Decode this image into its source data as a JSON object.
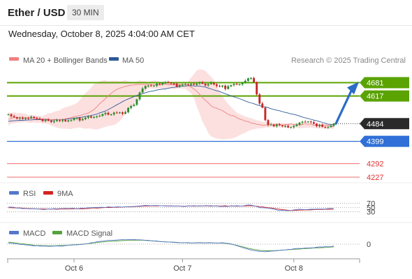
{
  "header": {
    "symbol": "Ether / USD",
    "timeframe": "30 MIN"
  },
  "datetime": "Wednesday, October 8, 2025 4:04:00 AM CET",
  "legend": {
    "ma20": "MA 20 + Bollinger Bands",
    "ma50": "MA 50",
    "copyright": "Research © 2025 Trading Central"
  },
  "colors": {
    "ma20": "#f08080",
    "ma50": "#2c5a9a",
    "bollinger_fill": "#fbd6d6",
    "candle_up": "#2e8b2e",
    "candle_down": "#c62828",
    "resistance": "#5aa300",
    "support": "#2f6fd6",
    "pivot_low": "#f26b6b",
    "arrow": "#2a6cc6",
    "rsi": "#5577cc",
    "rsi_ma": "#d42222",
    "macd": "#5577cc",
    "macd_signal": "#55a33a"
  },
  "chart_data": [
    {
      "type": "candlestick",
      "title": "Ether / USD",
      "ylim": [
        4200,
        4760
      ],
      "x_ticks": [
        "Oct 6",
        "Oct 7",
        "Oct 8"
      ],
      "series": [
        {
          "name": "MA 20 + Bollinger Bands"
        },
        {
          "name": "MA 50"
        }
      ],
      "levels": [
        {
          "value": 4681,
          "label": "4681",
          "kind": "resistance",
          "tag": true
        },
        {
          "value": 4617,
          "label": "4617",
          "kind": "resistance",
          "tag": true
        },
        {
          "value": 4484,
          "label": "4484",
          "kind": "last",
          "tag": true
        },
        {
          "value": 4399,
          "label": "4399",
          "kind": "support",
          "tag": true
        },
        {
          "value": 4292,
          "label": "4292",
          "kind": "support",
          "tag": false
        },
        {
          "value": 4227,
          "label": "4227",
          "kind": "support",
          "tag": false
        }
      ],
      "forecast_arrow": {
        "from": 4484,
        "to": 4665
      },
      "closes": [
        4529,
        4520,
        4515,
        4509,
        4512,
        4507,
        4512,
        4510,
        4517,
        4512,
        4508,
        4505,
        4497,
        4503,
        4498,
        4492,
        4496,
        4501,
        4497,
        4501,
        4495,
        4500,
        4501,
        4508,
        4512,
        4500,
        4506,
        4513,
        4519,
        4513,
        4517,
        4519,
        4522,
        4530,
        4536,
        4527,
        4529,
        4537,
        4536,
        4538,
        4532,
        4539,
        4560,
        4569,
        4575,
        4601,
        4634,
        4653,
        4665,
        4667,
        4666,
        4667,
        4676,
        4673,
        4681,
        4683,
        4681,
        4677,
        4676,
        4662,
        4669,
        4671,
        4673,
        4670,
        4675,
        4671,
        4677,
        4682,
        4676,
        4668,
        4674,
        4681,
        4673,
        4665,
        4662,
        4667,
        4651,
        4664,
        4669,
        4674,
        4672,
        4673,
        4680,
        4690,
        4702,
        4703,
        4684,
        4625,
        4581,
        4561,
        4501,
        4478,
        4480,
        4472,
        4480,
        4476,
        4472,
        4473,
        4466,
        4467,
        4473,
        4479,
        4489,
        4493,
        4492,
        4494,
        4491,
        4484,
        4472,
        4478,
        4469,
        4466,
        4468,
        4474,
        4484
      ],
      "ma20": [
        4505,
        4509,
        4513,
        4514,
        4514,
        4515,
        4512,
        4512,
        4511,
        4509,
        4507,
        4506,
        4507,
        4506,
        4505,
        4503,
        4504,
        4504,
        4503,
        4505,
        4507,
        4510,
        4513,
        4518,
        4521,
        4523,
        4527,
        4532,
        4535,
        4543,
        4552,
        4565,
        4580,
        4592,
        4604,
        4618,
        4630,
        4640,
        4649,
        4655,
        4658,
        4664,
        4666,
        4669,
        4670,
        4672,
        4672,
        4672,
        4673,
        4672,
        4672,
        4670,
        4672,
        4669,
        4673,
        4674,
        4671,
        4671,
        4671,
        4670,
        4671,
        4672,
        4672,
        4666,
        4660,
        4651,
        4640,
        4625,
        4609,
        4596,
        4585,
        4570,
        4562,
        4558,
        4552,
        4547,
        4538,
        4529,
        4523,
        4522,
        4513,
        4506,
        4502,
        4496,
        4494,
        4487,
        4485,
        4481,
        4479,
        4477,
        4477,
        4480,
        4478,
        4479,
        4480,
        4482,
        4477,
        4480,
        4481,
        4483,
        4480,
        4482,
        4478,
        4480,
        4485,
        4481,
        4483,
        4476,
        4481,
        4475,
        4478,
        4476,
        4476,
        4471,
        4470
      ],
      "bb_upper": [
        4540,
        4533,
        4540,
        4533,
        4536,
        4533,
        4533,
        4524,
        4524,
        4525,
        4522,
        4522,
        4519,
        4527,
        4534,
        4535,
        4542,
        4544,
        4548,
        4558,
        4563,
        4567,
        4572,
        4577,
        4583,
        4597,
        4616,
        4632,
        4644,
        4657,
        4674,
        4680,
        4689,
        4692,
        4694,
        4688,
        4690,
        4691,
        4690,
        4688,
        4691,
        4694,
        4688,
        4686,
        4684,
        4688,
        4692,
        4689,
        4689,
        4685,
        4689,
        4692,
        4690,
        4686,
        4685,
        4686,
        4681,
        4680,
        4679,
        4677,
        4681,
        4681,
        4679,
        4688,
        4706,
        4722,
        4740,
        4745,
        4744,
        4738,
        4724,
        4710,
        4693,
        4665,
        4640,
        4616,
        4596,
        4580,
        4565,
        4551,
        4538,
        4530,
        4525,
        4519,
        4514,
        4512,
        4505,
        4501,
        4498,
        4494,
        4492,
        4490,
        4490,
        4487,
        4487,
        4486,
        4487,
        4485,
        4486,
        4484,
        4484,
        4483,
        4482,
        4485,
        4484,
        4484,
        4484,
        4486,
        4484,
        4485,
        4484,
        4483,
        4483,
        4484,
        4483
      ],
      "bb_lower": [
        4475,
        4484,
        4486,
        4489,
        4488,
        4491,
        4492,
        4490,
        4487,
        4490,
        4487,
        4489,
        4484,
        4486,
        4483,
        4475,
        4470,
        4465,
        4463,
        4459,
        4460,
        4459,
        4458,
        4463,
        4463,
        4466,
        4462,
        4459,
        4462,
        4460,
        4457,
        4456,
        4460,
        4464,
        4469,
        4473,
        4475,
        4477,
        4485,
        4496,
        4512,
        4530,
        4546,
        4563,
        4583,
        4600,
        4617,
        4630,
        4640,
        4654,
        4654,
        4652,
        4654,
        4653,
        4651,
        4654,
        4655,
        4651,
        4650,
        4652,
        4654,
        4651,
        4652,
        4641,
        4630,
        4608,
        4566,
        4532,
        4493,
        4469,
        4440,
        4423,
        4417,
        4412,
        4411,
        4408,
        4410,
        4410,
        4412,
        4415,
        4421,
        4429,
        4435,
        4441,
        4449,
        4454,
        4457,
        4460,
        4462,
        4462,
        4466,
        4466,
        4467,
        4468,
        4466,
        4466,
        4465,
        4466,
        4463,
        4465,
        4467,
        4464,
        4462,
        4463,
        4464,
        4465,
        4466,
        4464,
        4461,
        4461,
        4460,
        4459,
        4460,
        4460,
        4459
      ],
      "ma50": [
        4495,
        4497,
        4498,
        4499,
        4500,
        4500,
        4501,
        4502,
        4502,
        4503,
        4503,
        4503,
        4502,
        4502,
        4503,
        4501,
        4502,
        4503,
        4504,
        4503,
        4505,
        4507,
        4509,
        4510,
        4512,
        4514,
        4516,
        4519,
        4521,
        4523,
        4527,
        4530,
        4536,
        4540,
        4545,
        4552,
        4559,
        4567,
        4575,
        4582,
        4590,
        4597,
        4603,
        4608,
        4614,
        4620,
        4624,
        4628,
        4633,
        4637,
        4640,
        4642,
        4646,
        4648,
        4650,
        4651,
        4654,
        4657,
        4659,
        4660,
        4663,
        4664,
        4665,
        4667,
        4667,
        4665,
        4665,
        4665,
        4662,
        4660,
        4655,
        4651,
        4646,
        4642,
        4639,
        4633,
        4628,
        4623,
        4618,
        4613,
        4609,
        4604,
        4599,
        4593,
        4588,
        4584,
        4580,
        4575,
        4571,
        4567,
        4565,
        4561,
        4556,
        4552,
        4549,
        4546,
        4542,
        4538,
        4535,
        4531,
        4529,
        4525,
        4521,
        4516,
        4512,
        4509,
        4505,
        4501,
        4498,
        4494,
        4490,
        4486,
        4482,
        4480,
        4478
      ]
    },
    {
      "type": "line",
      "title": "RSI",
      "ylim": [
        0,
        100
      ],
      "ref_levels": [
        70,
        50,
        30
      ],
      "series": [
        {
          "name": "RSI",
          "values": [
            52,
            52,
            51,
            47,
            47,
            45,
            45,
            44,
            44,
            45,
            43,
            43,
            41,
            41,
            44,
            42,
            45,
            44,
            45,
            45,
            46,
            45,
            46,
            46,
            43,
            46,
            47,
            47,
            49,
            49,
            50,
            50,
            51,
            51,
            50,
            53,
            52,
            52,
            53,
            53,
            52,
            53,
            54,
            54,
            55,
            56,
            57,
            58,
            60,
            59,
            58,
            59,
            59,
            58,
            58,
            57,
            57,
            58,
            56,
            57,
            57,
            55,
            55,
            58,
            57,
            58,
            57,
            58,
            57,
            59,
            58,
            58,
            57,
            58,
            55,
            55,
            55,
            55,
            58,
            57,
            58,
            57,
            56,
            60,
            62,
            61,
            58,
            55,
            49,
            49,
            48,
            47,
            45,
            43,
            39,
            36,
            37,
            36,
            35,
            36,
            39,
            41,
            42,
            41,
            40,
            41,
            42,
            42,
            43,
            43,
            43,
            43,
            45,
            46,
            44
          ]
        },
        {
          "name": "9MA",
          "values": [
            49,
            49,
            48,
            48,
            48,
            47,
            46,
            45,
            45,
            44,
            44,
            44,
            44,
            43,
            43,
            43,
            43,
            42,
            43,
            43,
            43,
            43,
            44,
            44,
            45,
            44,
            44,
            45,
            45,
            47,
            48,
            47,
            48,
            49,
            50,
            50,
            50,
            51,
            51,
            52,
            52,
            53,
            53,
            53,
            54,
            55,
            55,
            56,
            57,
            57,
            57,
            58,
            57,
            58,
            58,
            58,
            57,
            57,
            57,
            57,
            57,
            56,
            56,
            57,
            57,
            56,
            57,
            57,
            57,
            58,
            57,
            56,
            57,
            57,
            57,
            57,
            58,
            56,
            57,
            56,
            56,
            56,
            57,
            57,
            58,
            58,
            57,
            56,
            54,
            53,
            51,
            49,
            48,
            46,
            44,
            42,
            40,
            39,
            37,
            36,
            36,
            37,
            38,
            38,
            39,
            39,
            39,
            40,
            41,
            41,
            41,
            42,
            42,
            42,
            43
          ]
        }
      ]
    },
    {
      "type": "line",
      "title": "MACD",
      "ref_levels": [
        0
      ],
      "y_ticks": [
        "0"
      ],
      "series": [
        {
          "name": "MACD",
          "values": [
            6,
            4,
            3,
            1,
            -1,
            -2,
            -4,
            -5,
            -7,
            -9,
            -8,
            -10,
            -10,
            -10,
            -11,
            -11,
            -10,
            -9,
            -10,
            -10,
            -8,
            -6,
            -5,
            -4,
            -4,
            -2,
            -1,
            1,
            3,
            7,
            8,
            12,
            14,
            15,
            17,
            19,
            19,
            20,
            21,
            22,
            23,
            22,
            23,
            23,
            24,
            22,
            22,
            21,
            20,
            20,
            17,
            16,
            16,
            13,
            12,
            11,
            11,
            10,
            9,
            8,
            7,
            8,
            7,
            8,
            6,
            6,
            7,
            7,
            7,
            6,
            7,
            7,
            6,
            5,
            6,
            7,
            5,
            4,
            1,
            -3,
            -8,
            -12,
            -18,
            -21,
            -26,
            -30,
            -33,
            -35,
            -37,
            -38,
            -39,
            -37,
            -36,
            -35,
            -34,
            -32,
            -30,
            -30,
            -27,
            -27,
            -24,
            -22,
            -22,
            -22,
            -20,
            -20,
            -19,
            -19,
            -16,
            -14,
            -15,
            -13,
            -14,
            -12,
            -10
          ]
        },
        {
          "name": "MACD Signal",
          "values": [
            10,
            9,
            7,
            5,
            3,
            2,
            0,
            -2,
            -3,
            -6,
            -7,
            -7,
            -8,
            -8,
            -9,
            -9,
            -9,
            -8,
            -7,
            -7,
            -6,
            -6,
            -4,
            -3,
            -2,
            -1,
            0,
            1,
            3,
            4,
            6,
            8,
            10,
            11,
            12,
            14,
            14,
            15,
            16,
            17,
            18,
            19,
            19,
            19,
            20,
            20,
            20,
            20,
            19,
            18,
            17,
            16,
            14,
            14,
            13,
            12,
            11,
            11,
            10,
            9,
            8,
            7,
            7,
            6,
            6,
            6,
            6,
            6,
            6,
            6,
            6,
            6,
            6,
            6,
            5,
            5,
            4,
            2,
            0,
            -3,
            -6,
            -10,
            -13,
            -17,
            -21,
            -24,
            -27,
            -29,
            -32,
            -33,
            -34,
            -34,
            -34,
            -34,
            -33,
            -32,
            -31,
            -30,
            -29,
            -28,
            -27,
            -26,
            -25,
            -24,
            -23,
            -22,
            -21,
            -20,
            -20,
            -19,
            -18,
            -17,
            -16,
            -15,
            -14
          ]
        }
      ]
    }
  ]
}
